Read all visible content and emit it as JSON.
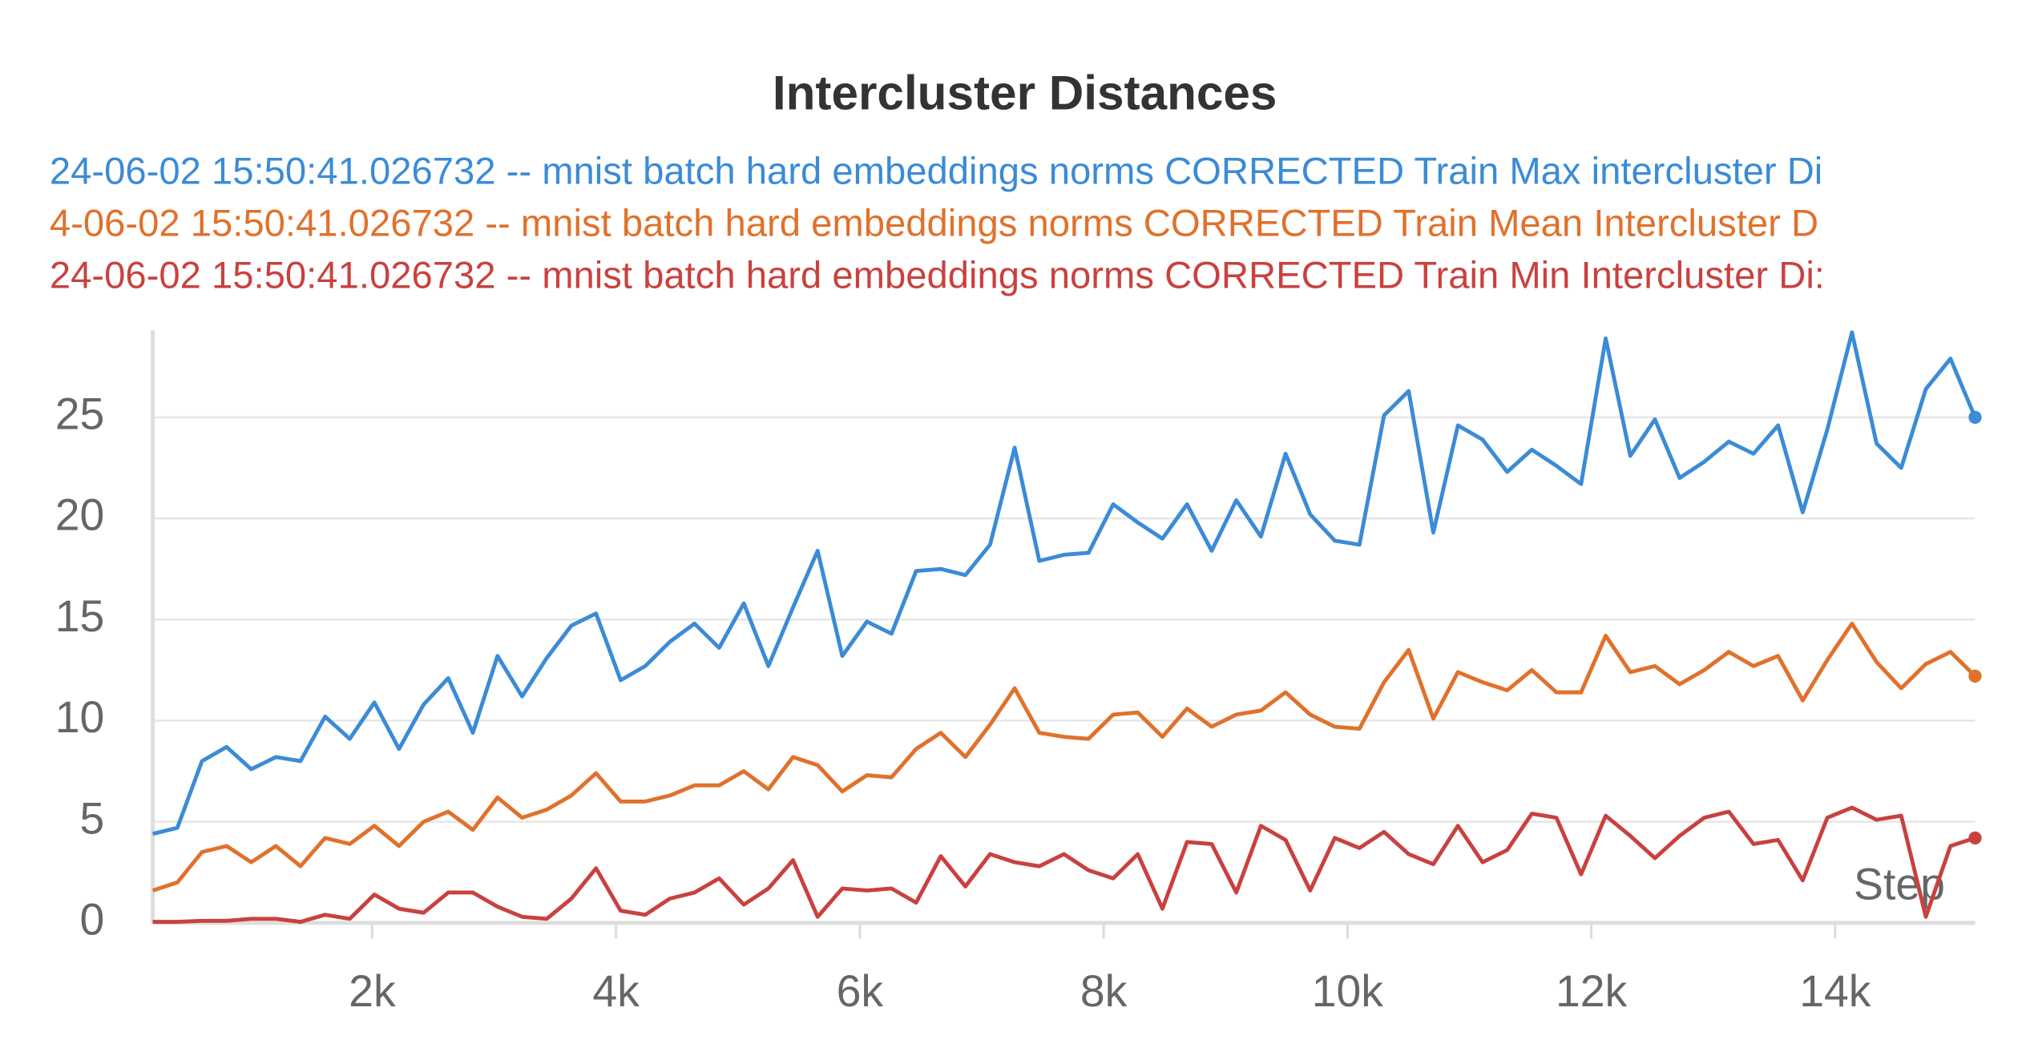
{
  "chart_data": {
    "type": "line",
    "title": "Intercluster Distances",
    "x_label": "Step",
    "x": [
      200,
      402,
      604,
      806,
      1008,
      1210,
      1412,
      1614,
      1816,
      2018,
      2220,
      2422,
      2624,
      2826,
      3028,
      3230,
      3432,
      3634,
      3836,
      4038,
      4240,
      4442,
      4644,
      4846,
      5048,
      5250,
      5452,
      5654,
      5856,
      6058,
      6260,
      6462,
      6664,
      6866,
      7068,
      7270,
      7472,
      7674,
      7876,
      8078,
      8280,
      8482,
      8684,
      8886,
      9088,
      9290,
      9492,
      9694,
      9896,
      10098,
      10300,
      10502,
      10704,
      10906,
      11108,
      11310,
      11512,
      11714,
      11916,
      12118,
      12320,
      12522,
      12724,
      12926,
      13128,
      13330,
      13532,
      13734,
      13936,
      14138,
      14340,
      14542,
      14744,
      14946,
      15148
    ],
    "series": [
      {
        "name": "24-06-02 15:50:41.026732 -- mnist batch hard embeddings norms CORRECTED Train Max intercluster Di",
        "color": "#3b8bd6",
        "values": [
          4.4,
          4.7,
          8.0,
          8.7,
          7.6,
          8.2,
          8.0,
          10.2,
          9.1,
          10.9,
          8.6,
          10.8,
          12.1,
          9.4,
          13.2,
          11.2,
          13.1,
          14.7,
          15.3,
          12.0,
          12.7,
          13.9,
          14.8,
          13.6,
          15.8,
          12.7,
          15.6,
          18.4,
          13.2,
          14.9,
          14.3,
          17.4,
          17.5,
          17.2,
          18.7,
          23.5,
          17.9,
          18.2,
          18.3,
          20.7,
          19.8,
          19.0,
          20.7,
          18.4,
          20.9,
          19.1,
          23.2,
          20.2,
          18.9,
          18.7,
          25.1,
          26.3,
          19.3,
          24.6,
          23.9,
          22.3,
          23.4,
          22.6,
          21.7,
          28.9,
          23.1,
          24.9,
          22.0,
          22.8,
          23.8,
          23.2,
          24.6,
          20.3,
          24.4,
          29.2,
          23.7,
          22.5,
          26.4,
          27.9,
          25.0
        ]
      },
      {
        "name": "4-06-02 15:50:41.026732 -- mnist batch hard embeddings norms CORRECTED Train Mean Intercluster D",
        "color": "#e0712c",
        "values": [
          1.6,
          2.0,
          3.5,
          3.8,
          3.0,
          3.8,
          2.8,
          4.2,
          3.9,
          4.8,
          3.8,
          5.0,
          5.5,
          4.6,
          6.2,
          5.2,
          5.6,
          6.3,
          7.4,
          6.0,
          6.0,
          6.3,
          6.8,
          6.8,
          7.5,
          6.6,
          8.2,
          7.8,
          6.5,
          7.3,
          7.2,
          8.6,
          9.4,
          8.2,
          9.8,
          11.6,
          9.4,
          9.2,
          9.1,
          10.3,
          10.4,
          9.2,
          10.6,
          9.7,
          10.3,
          10.5,
          11.4,
          10.3,
          9.7,
          9.6,
          11.9,
          13.5,
          10.1,
          12.4,
          11.9,
          11.5,
          12.5,
          11.4,
          11.4,
          14.2,
          12.4,
          12.7,
          11.8,
          12.5,
          13.4,
          12.7,
          13.2,
          11.0,
          13.0,
          14.8,
          12.9,
          11.6,
          12.8,
          13.4,
          12.2
        ]
      },
      {
        "name": "24-06-02 15:50:41.026732 -- mnist batch hard embeddings norms CORRECTED Train Min Intercluster Di:",
        "color": "#c9413f",
        "values": [
          0.05,
          0.05,
          0.1,
          0.1,
          0.2,
          0.2,
          0.05,
          0.4,
          0.2,
          1.4,
          0.7,
          0.5,
          1.5,
          1.5,
          0.8,
          0.3,
          0.2,
          1.2,
          2.7,
          0.6,
          0.4,
          1.2,
          1.5,
          2.2,
          0.9,
          1.7,
          3.1,
          0.3,
          1.7,
          1.6,
          1.7,
          1.0,
          3.3,
          1.8,
          3.4,
          3.0,
          2.8,
          3.4,
          2.6,
          2.2,
          3.4,
          0.7,
          4.0,
          3.9,
          1.5,
          4.8,
          4.1,
          1.6,
          4.2,
          3.7,
          4.5,
          3.4,
          2.9,
          4.8,
          3.0,
          3.6,
          5.4,
          5.2,
          2.4,
          5.3,
          4.3,
          3.2,
          4.3,
          5.2,
          5.5,
          3.9,
          4.1,
          2.1,
          5.2,
          5.7,
          5.1,
          5.3,
          0.3,
          3.8,
          4.2
        ]
      }
    ],
    "xlim": [
      200,
      15148
    ],
    "ylim": [
      0,
      29.3
    ],
    "yticks": [
      0,
      5,
      10,
      15,
      20,
      25
    ],
    "xticks": [
      {
        "value": 2000,
        "label": "2k"
      },
      {
        "value": 4000,
        "label": "4k"
      },
      {
        "value": 6000,
        "label": "6k"
      },
      {
        "value": 8000,
        "label": "8k"
      },
      {
        "value": 10000,
        "label": "10k"
      },
      {
        "value": 12000,
        "label": "12k"
      },
      {
        "value": 14000,
        "label": "14k"
      }
    ],
    "grid": true,
    "legend": "top"
  }
}
